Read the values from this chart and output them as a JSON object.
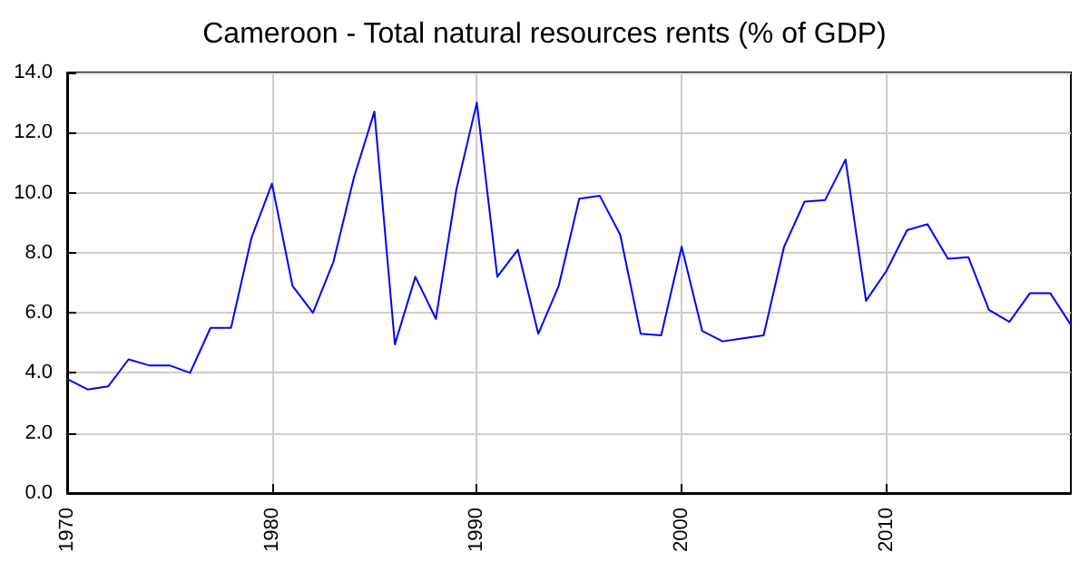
{
  "chart_data": {
    "type": "line",
    "title": "Cameroon - Total natural resources rents (% of GDP)",
    "x": [
      1970,
      1971,
      1972,
      1973,
      1974,
      1975,
      1976,
      1977,
      1978,
      1979,
      1980,
      1981,
      1982,
      1983,
      1984,
      1985,
      1986,
      1987,
      1988,
      1989,
      1990,
      1991,
      1992,
      1993,
      1994,
      1995,
      1996,
      1997,
      1998,
      1999,
      2000,
      2001,
      2002,
      2003,
      2004,
      2005,
      2006,
      2007,
      2008,
      2009,
      2010,
      2011,
      2012,
      2013,
      2014,
      2015,
      2016,
      2017,
      2018,
      2019
    ],
    "series": [
      {
        "color": "#0000ff",
        "values": [
          3.8,
          3.45,
          3.55,
          4.45,
          4.25,
          4.25,
          4.0,
          5.5,
          5.5,
          8.5,
          10.3,
          6.9,
          6.0,
          7.7,
          10.5,
          12.7,
          4.95,
          7.2,
          5.8,
          10.1,
          13.0,
          7.2,
          8.1,
          5.3,
          6.9,
          9.8,
          9.9,
          8.6,
          5.3,
          5.25,
          8.2,
          5.4,
          5.05,
          5.15,
          5.25,
          8.2,
          9.7,
          9.75,
          11.1,
          6.4,
          7.4,
          8.75,
          8.95,
          7.8,
          7.85,
          6.1,
          5.7,
          6.65,
          6.65,
          5.6
        ]
      }
    ],
    "xlim": [
      1970,
      2019
    ],
    "xticks": [
      1970,
      1980,
      1990,
      2000,
      2010
    ],
    "ylim": [
      0,
      14
    ],
    "yticks": [
      {
        "value": 0,
        "label": "0.0"
      },
      {
        "value": 2,
        "label": "2.0"
      },
      {
        "value": 4,
        "label": "4.0"
      },
      {
        "value": 6,
        "label": "6.0"
      },
      {
        "value": 8,
        "label": "8.0"
      },
      {
        "value": 10,
        "label": "10.0"
      },
      {
        "value": 12,
        "label": "12.0"
      },
      {
        "value": 14,
        "label": "14.0"
      }
    ],
    "grid": true,
    "marker": "none",
    "line_style": "solid"
  }
}
